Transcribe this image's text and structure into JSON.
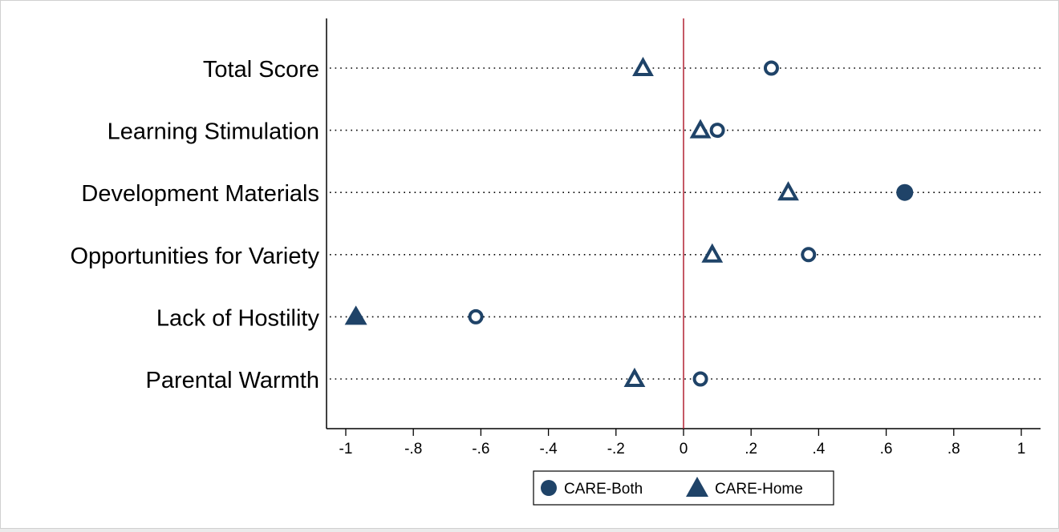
{
  "chart_data": {
    "type": "scatter",
    "orientation": "horizontal",
    "categories": [
      "Total Score",
      "Learning Stimulation",
      "Development Materials",
      "Opportunities for Variety",
      "Lack of Hostility",
      "Parental Warmth"
    ],
    "xlim": [
      -1,
      1
    ],
    "xticks": [
      -1,
      -0.8,
      -0.6,
      -0.4,
      -0.2,
      0,
      0.2,
      0.4,
      0.6,
      0.8,
      1
    ],
    "xtick_labels": [
      "-1",
      "-.8",
      "-.6",
      "-.4",
      "-.2",
      "0",
      ".2",
      ".4",
      ".6",
      ".8",
      "1"
    ],
    "reference_line": {
      "x": 0,
      "color": "#b22234"
    },
    "gridlines": "dotted-horizontal",
    "legend": {
      "position": "bottom",
      "entries": [
        "CARE-Both",
        "CARE-Home"
      ]
    },
    "series": [
      {
        "name": "CARE-Both",
        "marker": "circle",
        "color": "#1f4368",
        "values": [
          0.26,
          0.1,
          0.655,
          0.37,
          -0.615,
          0.05
        ],
        "filled": [
          false,
          false,
          true,
          false,
          false,
          false
        ]
      },
      {
        "name": "CARE-Home",
        "marker": "triangle",
        "color": "#1f4368",
        "values": [
          -0.12,
          0.05,
          0.31,
          0.085,
          -0.97,
          -0.145
        ],
        "filled": [
          false,
          false,
          false,
          false,
          true,
          false
        ]
      }
    ]
  }
}
